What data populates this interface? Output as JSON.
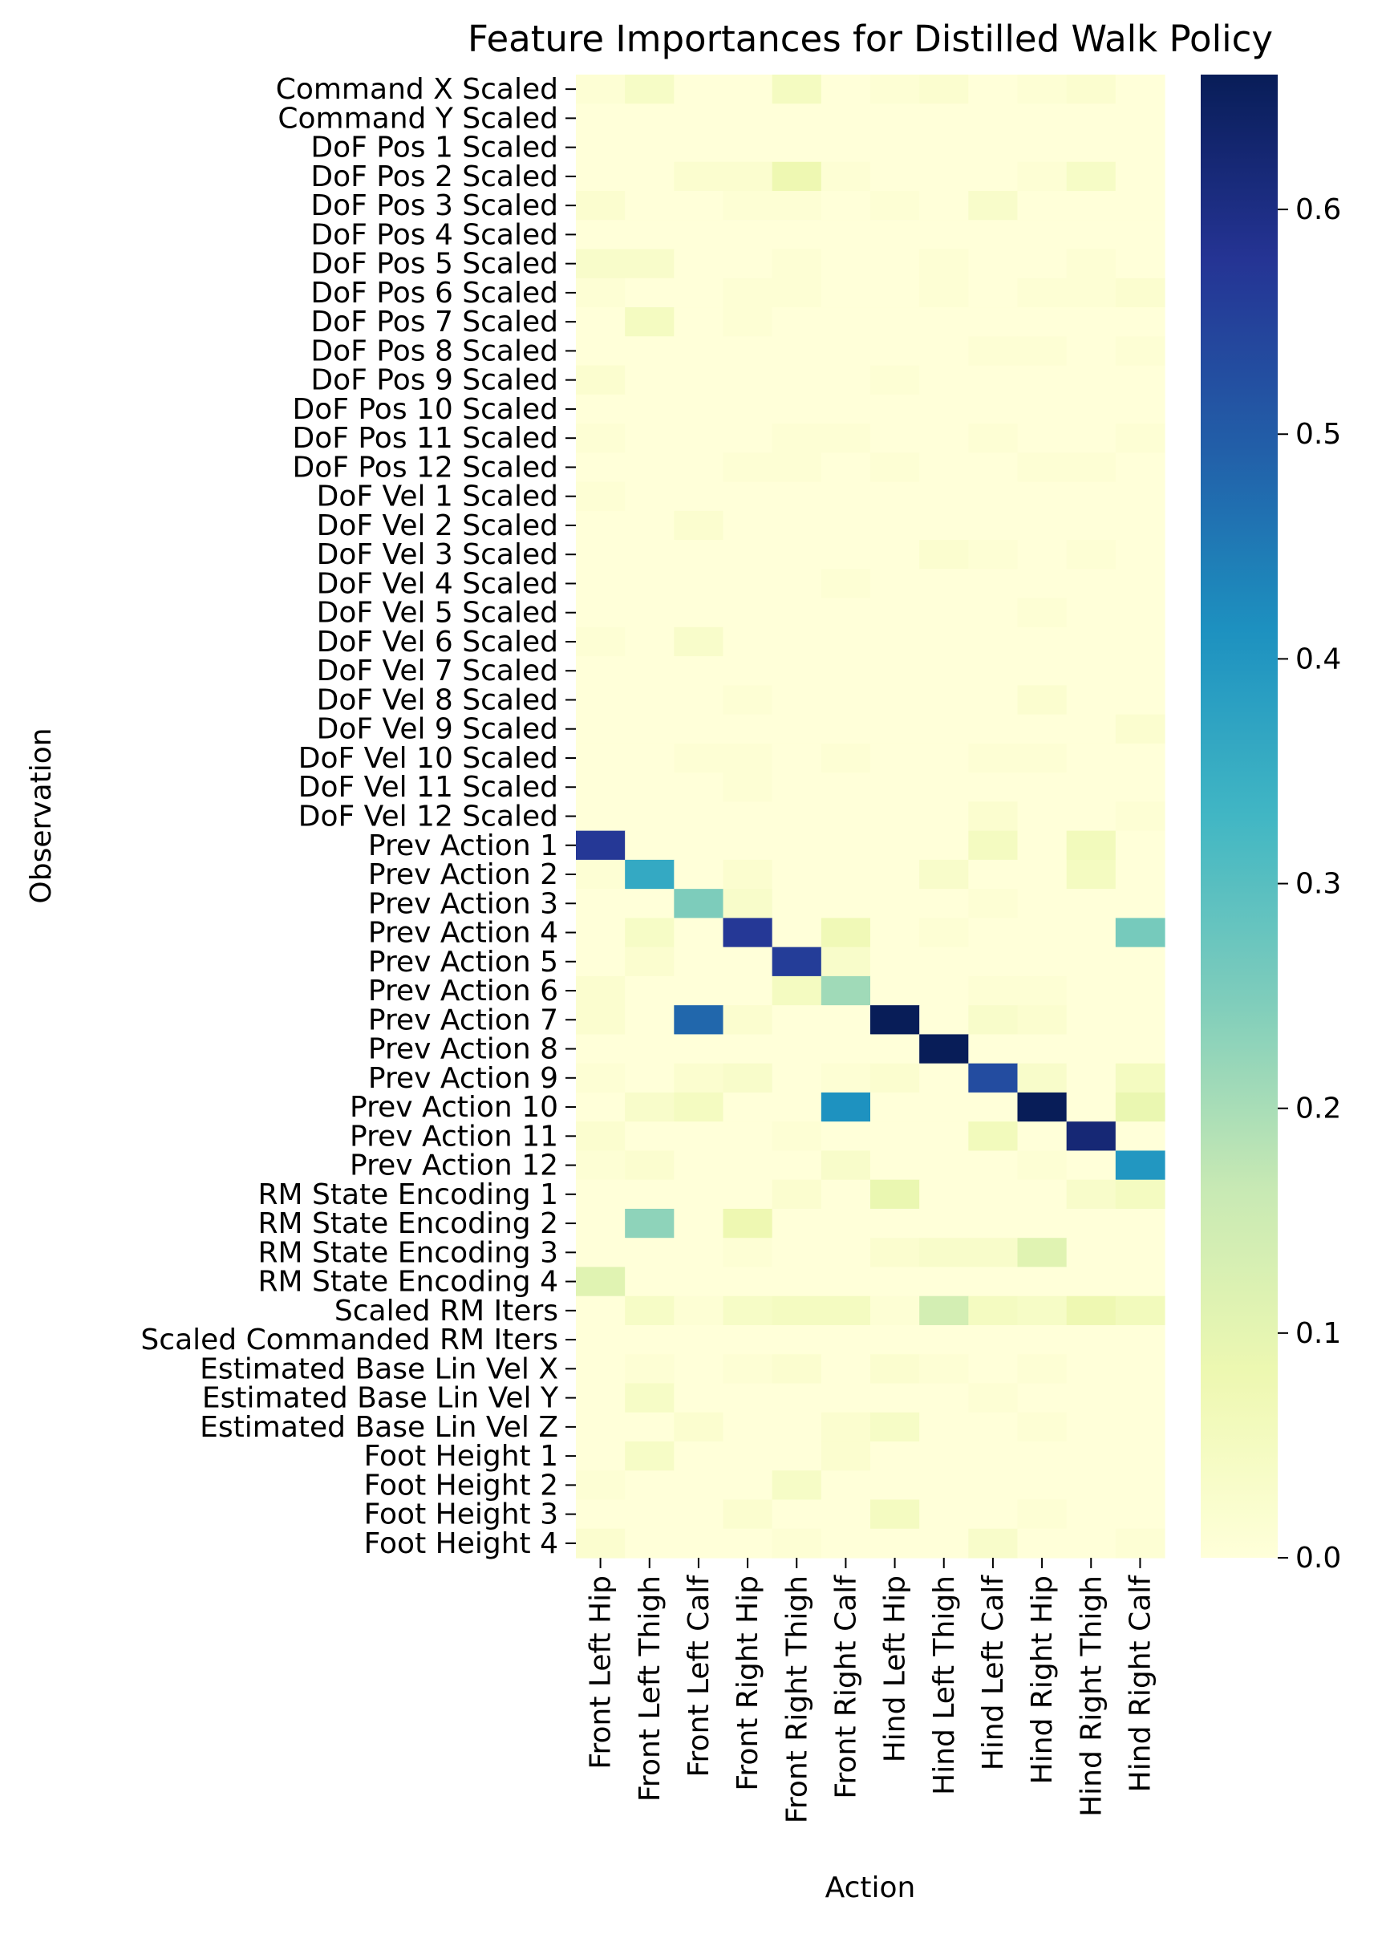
{
  "chart_data": {
    "type": "heatmap",
    "title": "Feature Importances for Distilled Walk Policy",
    "xlabel": "Action",
    "ylabel": "Observation",
    "colormap": "YlGnBu",
    "vmin": 0.0,
    "vmax": 0.66,
    "colorbar_ticks": [
      "0.0",
      "0.1",
      "0.2",
      "0.3",
      "0.4",
      "0.5",
      "0.6"
    ],
    "colorbar_tick_values": [
      0.0,
      0.1,
      0.2,
      0.3,
      0.4,
      0.5,
      0.6
    ],
    "columns": [
      "Front Left Hip",
      "Front Left Thigh",
      "Front Left Calf",
      "Front Right Hip",
      "Front Right Thigh",
      "Front Right Calf",
      "Hind Left Hip",
      "Hind Left Thigh",
      "Hind Left Calf",
      "Hind Right Hip",
      "Hind Right Thigh",
      "Hind Right Calf"
    ],
    "rows": [
      "Command X Scaled",
      "Command Y Scaled",
      "DoF Pos 1 Scaled",
      "DoF Pos 2 Scaled",
      "DoF Pos 3 Scaled",
      "DoF Pos 4 Scaled",
      "DoF Pos 5 Scaled",
      "DoF Pos 6 Scaled",
      "DoF Pos 7 Scaled",
      "DoF Pos 8 Scaled",
      "DoF Pos 9 Scaled",
      "DoF Pos 10 Scaled",
      "DoF Pos 11 Scaled",
      "DoF Pos 12 Scaled",
      "DoF Vel 1 Scaled",
      "DoF Vel 2 Scaled",
      "DoF Vel 3 Scaled",
      "DoF Vel 4 Scaled",
      "DoF Vel 5 Scaled",
      "DoF Vel 6 Scaled",
      "DoF Vel 7 Scaled",
      "DoF Vel 8 Scaled",
      "DoF Vel 9 Scaled",
      "DoF Vel 10 Scaled",
      "DoF Vel 11 Scaled",
      "DoF Vel 12 Scaled",
      "Prev Action 1",
      "Prev Action 2",
      "Prev Action 3",
      "Prev Action 4",
      "Prev Action 5",
      "Prev Action 6",
      "Prev Action 7",
      "Prev Action 8",
      "Prev Action 9",
      "Prev Action 10",
      "Prev Action 11",
      "Prev Action 12",
      "RM State Encoding 1",
      "RM State Encoding 2",
      "RM State Encoding 3",
      "RM State Encoding 4",
      "Scaled RM Iters",
      "Scaled Commanded RM Iters",
      "Estimated Base Lin Vel X",
      "Estimated Base Lin Vel Y",
      "Estimated Base Lin Vel Z",
      "Foot Height 1",
      "Foot Height 2",
      "Foot Height 3",
      "Foot Height 4"
    ],
    "values": [
      [
        0.01,
        0.04,
        0.0,
        0.0,
        0.05,
        0.0,
        0.01,
        0.02,
        0.0,
        0.01,
        0.02,
        0.0
      ],
      [
        0.0,
        0.0,
        0.0,
        0.0,
        0.0,
        0.0,
        0.0,
        0.0,
        0.0,
        0.0,
        0.0,
        0.0
      ],
      [
        0.0,
        0.0,
        0.0,
        0.0,
        0.0,
        0.0,
        0.0,
        0.0,
        0.0,
        0.0,
        0.0,
        0.0
      ],
      [
        0.0,
        0.0,
        0.02,
        0.02,
        0.08,
        0.01,
        0.0,
        0.0,
        0.0,
        0.01,
        0.04,
        0.0
      ],
      [
        0.02,
        0.0,
        0.0,
        0.01,
        0.01,
        0.0,
        0.01,
        0.0,
        0.03,
        0.0,
        0.0,
        0.0
      ],
      [
        0.0,
        0.0,
        0.0,
        0.0,
        0.0,
        0.0,
        0.0,
        0.0,
        0.0,
        0.0,
        0.0,
        0.0
      ],
      [
        0.03,
        0.03,
        0.0,
        0.0,
        0.01,
        0.0,
        0.0,
        0.01,
        0.0,
        0.0,
        0.01,
        0.0
      ],
      [
        0.01,
        0.0,
        0.0,
        0.01,
        0.01,
        0.0,
        0.0,
        0.01,
        0.0,
        0.01,
        0.01,
        0.02
      ],
      [
        0.0,
        0.05,
        0.0,
        0.01,
        0.0,
        0.0,
        0.0,
        0.0,
        0.0,
        0.0,
        0.0,
        0.0
      ],
      [
        0.0,
        0.0,
        0.0,
        0.0,
        0.0,
        0.0,
        0.0,
        0.0,
        0.01,
        0.01,
        0.0,
        0.01
      ],
      [
        0.02,
        0.0,
        0.0,
        0.0,
        0.0,
        0.0,
        0.01,
        0.0,
        0.0,
        0.0,
        0.0,
        0.0
      ],
      [
        0.0,
        0.0,
        0.0,
        0.0,
        0.0,
        0.0,
        0.0,
        0.0,
        0.0,
        0.0,
        0.0,
        0.0
      ],
      [
        0.01,
        0.0,
        0.0,
        0.0,
        0.01,
        0.01,
        0.0,
        0.0,
        0.01,
        0.0,
        0.0,
        0.01
      ],
      [
        0.0,
        0.0,
        0.0,
        0.01,
        0.01,
        0.0,
        0.01,
        0.0,
        0.0,
        0.01,
        0.01,
        0.0
      ],
      [
        0.01,
        0.0,
        0.0,
        0.0,
        0.0,
        0.0,
        0.0,
        0.0,
        0.0,
        0.0,
        0.0,
        0.0
      ],
      [
        0.0,
        0.0,
        0.02,
        0.0,
        0.0,
        0.0,
        0.0,
        0.0,
        0.0,
        0.0,
        0.0,
        0.0
      ],
      [
        0.0,
        0.0,
        0.0,
        0.0,
        0.0,
        0.0,
        0.0,
        0.02,
        0.01,
        0.0,
        0.01,
        0.0
      ],
      [
        0.0,
        0.0,
        0.0,
        0.0,
        0.0,
        0.01,
        0.0,
        0.0,
        0.0,
        0.0,
        0.0,
        0.0
      ],
      [
        0.0,
        0.0,
        0.0,
        0.0,
        0.0,
        0.0,
        0.0,
        0.0,
        0.0,
        0.01,
        0.0,
        0.0
      ],
      [
        0.01,
        0.0,
        0.03,
        0.0,
        0.0,
        0.0,
        0.0,
        0.0,
        0.0,
        0.0,
        0.0,
        0.0
      ],
      [
        0.0,
        0.0,
        0.0,
        0.0,
        0.0,
        0.0,
        0.0,
        0.0,
        0.0,
        0.0,
        0.0,
        0.0
      ],
      [
        0.0,
        0.0,
        0.0,
        0.01,
        0.0,
        0.0,
        0.0,
        0.0,
        0.0,
        0.02,
        0.0,
        0.0
      ],
      [
        0.0,
        0.0,
        0.0,
        0.0,
        0.0,
        0.0,
        0.0,
        0.0,
        0.0,
        0.0,
        0.0,
        0.02
      ],
      [
        0.0,
        0.0,
        0.01,
        0.01,
        0.0,
        0.01,
        0.0,
        0.0,
        0.01,
        0.01,
        0.0,
        0.0
      ],
      [
        0.0,
        0.0,
        0.0,
        0.01,
        0.0,
        0.0,
        0.0,
        0.0,
        0.0,
        0.0,
        0.0,
        0.0
      ],
      [
        0.0,
        0.0,
        0.0,
        0.0,
        0.0,
        0.0,
        0.0,
        0.0,
        0.02,
        0.0,
        0.0,
        0.01
      ],
      [
        0.57,
        0.0,
        0.0,
        0.0,
        0.0,
        0.0,
        0.0,
        0.0,
        0.05,
        0.0,
        0.06,
        0.0
      ],
      [
        0.01,
        0.36,
        0.0,
        0.02,
        0.0,
        0.0,
        0.0,
        0.03,
        0.0,
        0.0,
        0.05,
        0.0
      ],
      [
        0.0,
        0.0,
        0.25,
        0.03,
        0.0,
        0.0,
        0.0,
        0.0,
        0.01,
        0.0,
        0.0,
        0.0
      ],
      [
        0.0,
        0.04,
        0.0,
        0.57,
        0.0,
        0.07,
        0.0,
        0.01,
        0.0,
        0.0,
        0.0,
        0.26
      ],
      [
        0.0,
        0.02,
        0.0,
        0.0,
        0.56,
        0.03,
        0.0,
        0.0,
        0.0,
        0.0,
        0.0,
        0.0
      ],
      [
        0.02,
        0.0,
        0.0,
        0.0,
        0.05,
        0.21,
        0.0,
        0.0,
        0.01,
        0.01,
        0.0,
        0.0
      ],
      [
        0.02,
        0.0,
        0.48,
        0.02,
        0.0,
        0.0,
        0.66,
        0.0,
        0.03,
        0.02,
        0.0,
        0.0
      ],
      [
        0.0,
        0.0,
        0.0,
        0.0,
        0.0,
        0.0,
        0.0,
        0.66,
        0.0,
        0.0,
        0.0,
        0.0
      ],
      [
        0.01,
        0.0,
        0.02,
        0.03,
        0.0,
        0.01,
        0.02,
        0.0,
        0.53,
        0.03,
        0.0,
        0.05
      ],
      [
        0.0,
        0.03,
        0.05,
        0.0,
        0.0,
        0.41,
        0.0,
        0.0,
        0.0,
        0.66,
        0.0,
        0.09
      ],
      [
        0.02,
        0.0,
        0.0,
        0.0,
        0.01,
        0.0,
        0.0,
        0.0,
        0.06,
        0.0,
        0.62,
        0.0
      ],
      [
        0.01,
        0.02,
        0.0,
        0.0,
        0.0,
        0.03,
        0.0,
        0.0,
        0.0,
        0.01,
        0.0,
        0.4
      ],
      [
        0.0,
        0.0,
        0.0,
        0.0,
        0.02,
        0.0,
        0.09,
        0.0,
        0.0,
        0.0,
        0.03,
        0.05
      ],
      [
        0.0,
        0.23,
        0.0,
        0.08,
        0.0,
        0.0,
        0.0,
        0.0,
        0.0,
        0.0,
        0.0,
        0.0
      ],
      [
        0.0,
        0.0,
        0.0,
        0.01,
        0.0,
        0.0,
        0.02,
        0.03,
        0.03,
        0.11,
        0.0,
        0.0
      ],
      [
        0.11,
        0.0,
        0.0,
        0.0,
        0.0,
        0.0,
        0.0,
        0.0,
        0.0,
        0.0,
        0.0,
        0.0
      ],
      [
        0.0,
        0.04,
        0.01,
        0.04,
        0.05,
        0.05,
        0.01,
        0.14,
        0.05,
        0.04,
        0.08,
        0.06
      ],
      [
        0.0,
        0.0,
        0.0,
        0.0,
        0.0,
        0.0,
        0.0,
        0.0,
        0.0,
        0.0,
        0.0,
        0.0
      ],
      [
        0.0,
        0.01,
        0.0,
        0.01,
        0.02,
        0.0,
        0.02,
        0.01,
        0.0,
        0.01,
        0.0,
        0.0
      ],
      [
        0.0,
        0.04,
        0.0,
        0.0,
        0.0,
        0.0,
        0.0,
        0.0,
        0.01,
        0.0,
        0.0,
        0.0
      ],
      [
        0.0,
        0.0,
        0.02,
        0.0,
        0.0,
        0.02,
        0.04,
        0.0,
        0.0,
        0.01,
        0.0,
        0.0
      ],
      [
        0.0,
        0.04,
        0.0,
        0.0,
        0.0,
        0.02,
        0.0,
        0.0,
        0.0,
        0.0,
        0.0,
        0.0
      ],
      [
        0.01,
        0.0,
        0.0,
        0.0,
        0.04,
        0.0,
        0.0,
        0.0,
        0.0,
        0.0,
        0.0,
        0.0
      ],
      [
        0.0,
        0.0,
        0.0,
        0.02,
        0.0,
        0.0,
        0.05,
        0.0,
        0.0,
        0.01,
        0.0,
        0.0
      ],
      [
        0.02,
        0.0,
        0.0,
        0.0,
        0.01,
        0.0,
        0.0,
        0.0,
        0.03,
        0.0,
        0.0,
        0.01
      ]
    ]
  }
}
